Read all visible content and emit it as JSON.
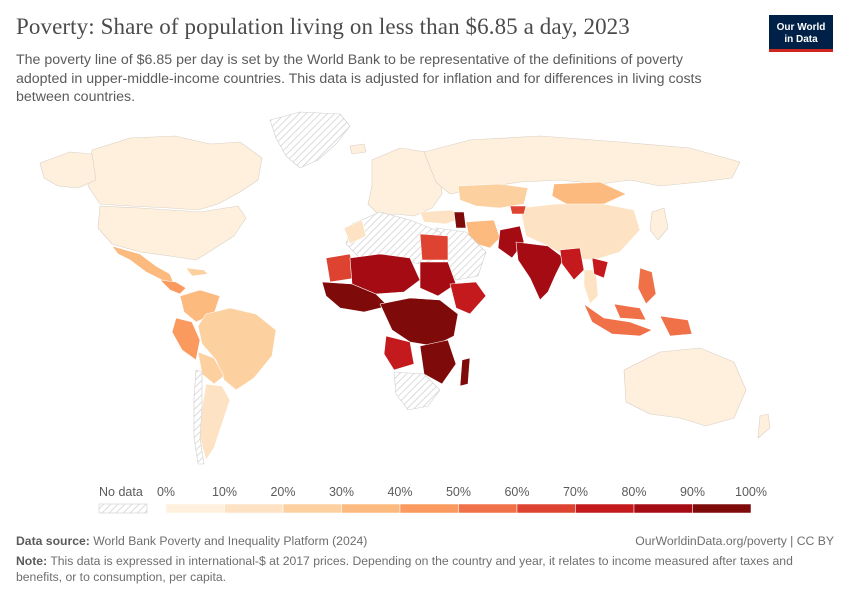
{
  "title": "Poverty: Share of population living on less than $6.85 a day, 2023",
  "subtitle": "The poverty line of $6.85 per day is set by the World Bank to be representative of the definitions of poverty adopted in upper-middle-income countries. This data is adjusted for inflation and for differences in living costs between countries.",
  "logo": {
    "line1": "Our World",
    "line2": "in Data",
    "bg": "#002147",
    "accent": "#ce261e"
  },
  "legend": {
    "no_data_label": "No data",
    "ticks": [
      "0%",
      "10%",
      "20%",
      "30%",
      "40%",
      "50%",
      "60%",
      "70%",
      "80%",
      "90%",
      "100%"
    ],
    "colors": [
      "#fef0dd",
      "#fde3c3",
      "#fdd0a0",
      "#fcba7e",
      "#fa9a5e",
      "#f07048",
      "#dd4330",
      "#c41a1d",
      "#a50b12",
      "#7f0a0a"
    ]
  },
  "map_data": {
    "color_scale": "sequential orange-red, 0% to 100%",
    "regions": [
      {
        "name": "Canada",
        "bin": 0
      },
      {
        "name": "USA",
        "bin": 0
      },
      {
        "name": "Mexico",
        "bin": 3
      },
      {
        "name": "Central America",
        "bin": 4
      },
      {
        "name": "Colombia",
        "bin": 3
      },
      {
        "name": "Peru",
        "bin": 3
      },
      {
        "name": "Bolivia",
        "bin": 3
      },
      {
        "name": "Brazil",
        "bin": 3
      },
      {
        "name": "Argentina",
        "bin": 2
      },
      {
        "name": "Chile",
        "bin": 0
      },
      {
        "name": "Europe",
        "bin": 0
      },
      {
        "name": "Russia",
        "bin": 0
      },
      {
        "name": "Kazakhstan",
        "bin": 2
      },
      {
        "name": "Mongolia",
        "bin": 3
      },
      {
        "name": "China",
        "bin": 2
      },
      {
        "name": "Iran",
        "bin": 3
      },
      {
        "name": "Turkey",
        "bin": 1
      },
      {
        "name": "Egypt",
        "bin": 6
      },
      {
        "name": "Mauritania",
        "bin": 6
      },
      {
        "name": "Mali / Niger",
        "bin": 9
      },
      {
        "name": "West Africa",
        "bin": 9
      },
      {
        "name": "Central Africa",
        "bin": 9
      },
      {
        "name": "Angola",
        "bin": 7
      },
      {
        "name": "Southern Africa",
        "bin": 6
      },
      {
        "name": "Madagascar",
        "bin": 9
      },
      {
        "name": "Kyrgyzstan",
        "bin": 6
      },
      {
        "name": "Pakistan",
        "bin": 9
      },
      {
        "name": "India",
        "bin": 8
      },
      {
        "name": "Bangladesh",
        "bin": 9
      },
      {
        "name": "Myanmar",
        "bin": 8
      },
      {
        "name": "Thailand",
        "bin": 2
      },
      {
        "name": "Laos",
        "bin": 7
      },
      {
        "name": "Philippines",
        "bin": 6
      },
      {
        "name": "Indonesia",
        "bin": 6
      },
      {
        "name": "Papua New Guinea",
        "bin": 6
      },
      {
        "name": "Australia",
        "bin": 0
      }
    ]
  },
  "footer": {
    "source_label": "Data source:",
    "source_text": "World Bank Poverty and Inequality Platform (2024)",
    "site": "OurWorldinData.org/poverty | CC BY",
    "note_label": "Note:",
    "note_text": "This data is expressed in international-$ at 2017 prices. Depending on the country and year, it relates to income measured after taxes and benefits, or to consumption, per capita."
  }
}
